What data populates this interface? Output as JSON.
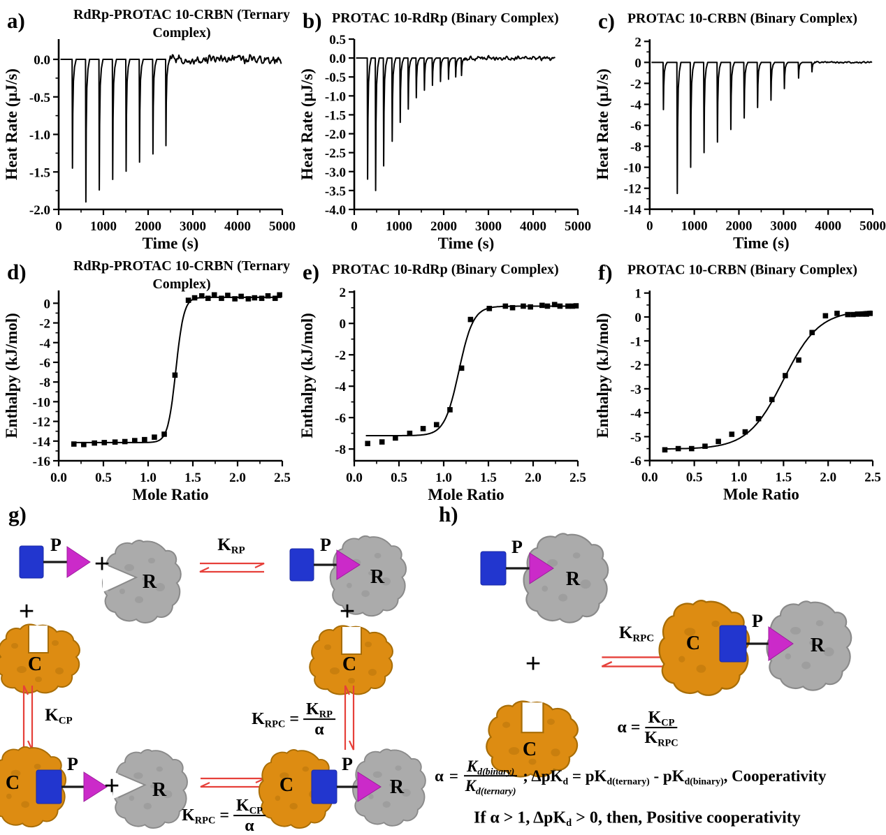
{
  "colors": {
    "blue": "#2236cf",
    "magenta": "#cb2ac9",
    "magenta_dark": "#9c1d9c",
    "gray_blob": "#ababab",
    "gray_blob_edge": "#8a8a8a",
    "gray_spot": "#8f8f8f",
    "orange_blob": "#dd8c12",
    "orange_blob_edge": "#a86d06",
    "orange_spot": "#b5720a",
    "arrow_red": "#e6403a",
    "ink": "#000000",
    "background": "#ffffff"
  },
  "chart_data": [
    {
      "id": "a",
      "type": "line",
      "panel_label": "a)",
      "title_lines": [
        "RdRp-PROTAC 10-CRBN (Ternary",
        "Complex)"
      ],
      "xlabel": "Time (s)",
      "ylabel": "Heat Rate (μJ/s)",
      "xlim": [
        0,
        5000
      ],
      "ylim": [
        -2.0,
        0.27
      ],
      "xticks": [
        "0",
        "1000",
        "2000",
        "3000",
        "4000",
        "5000"
      ],
      "xtick_vals": [
        0,
        1000,
        2000,
        3000,
        4000,
        5000
      ],
      "yticks": [
        "0.0",
        "-0.5",
        "-1.0",
        "-1.5",
        "-2.0"
      ],
      "ytick_vals": [
        0,
        -0.5,
        -1,
        -1.5,
        -2
      ],
      "injection_times": [
        310,
        610,
        910,
        1210,
        1510,
        1810,
        2110,
        2400
      ],
      "injection_depths": [
        -1.45,
        -1.9,
        -1.74,
        -1.6,
        -1.49,
        -1.37,
        -1.26,
        -1.15
      ],
      "noise_start": 2480,
      "trace_end": 4980,
      "noise_amplitude": 0.07
    },
    {
      "id": "b",
      "type": "line",
      "panel_label": "b)",
      "title_lines": [
        "PROTAC 10-RdRp (Binary Complex)"
      ],
      "xlabel": "Time (s)",
      "ylabel": "Heat Rate (μJ/s)",
      "xlim": [
        0,
        5000
      ],
      "ylim": [
        -4.0,
        0.5
      ],
      "xticks": [
        "0",
        "1000",
        "2000",
        "3000",
        "4000",
        "5000"
      ],
      "xtick_vals": [
        0,
        1000,
        2000,
        3000,
        4000,
        5000
      ],
      "yticks": [
        "0.5",
        "0.0",
        "-0.5",
        "-1.0",
        "-1.5",
        "-2.0",
        "-2.5",
        "-3.0",
        "-3.5",
        "-4.0"
      ],
      "ytick_vals": [
        0.5,
        0,
        -0.5,
        -1,
        -1.5,
        -2,
        -2.5,
        -3,
        -3.5,
        -4
      ],
      "injection_times": [
        300,
        480,
        660,
        850,
        1030,
        1210,
        1390,
        1570,
        1750,
        1930,
        2110,
        2270,
        2400
      ],
      "injection_depths": [
        -3.2,
        -3.5,
        -2.85,
        -2.2,
        -1.7,
        -1.35,
        -1.05,
        -0.85,
        -0.72,
        -0.62,
        -0.56,
        -0.5,
        -0.46
      ],
      "noise_start": 2460,
      "trace_end": 4500,
      "noise_amplitude": 0.07
    },
    {
      "id": "c",
      "type": "line",
      "panel_label": "c)",
      "title_lines": [
        "PROTAC 10-CRBN (Binary Complex)"
      ],
      "xlabel": "Time (s)",
      "ylabel": "Heat Rate (μJ/s)",
      "xlim": [
        0,
        5000
      ],
      "ylim": [
        -14,
        2.2
      ],
      "xticks": [
        "0",
        "1000",
        "2000",
        "3000",
        "4000",
        "5000"
      ],
      "xtick_vals": [
        0,
        1000,
        2000,
        3000,
        4000,
        5000
      ],
      "yticks": [
        "2",
        "0",
        "-2",
        "-4",
        "-6",
        "-8",
        "-10",
        "-12",
        "-14"
      ],
      "ytick_vals": [
        2,
        0,
        -2,
        -4,
        -6,
        -8,
        -10,
        -12,
        -14
      ],
      "injection_times": [
        310,
        620,
        920,
        1220,
        1520,
        1820,
        2120,
        2420,
        2720,
        3020,
        3340,
        3640
      ],
      "injection_depths": [
        -4.5,
        -12.5,
        -10.0,
        -8.6,
        -7.6,
        -6.4,
        -5.3,
        -4.3,
        -3.6,
        -2.5,
        -1.5,
        -0.9
      ],
      "noise_start": 3700,
      "trace_end": 4990,
      "noise_amplitude": 0.1
    },
    {
      "id": "d",
      "type": "scatter",
      "panel_label": "d)",
      "title_lines": [
        "RdRp-PROTAC 10-CRBN (Ternary",
        "Complex)"
      ],
      "xlabel": "Mole Ratio",
      "ylabel": "Enthalpy (kJ/mol)",
      "xlim": [
        0,
        2.5
      ],
      "ylim": [
        -16,
        1.3
      ],
      "xticks": [
        "0.0",
        "0.5",
        "1.0",
        "1.5",
        "2.0",
        "2.5"
      ],
      "xtick_vals": [
        0,
        0.5,
        1,
        1.5,
        2,
        2.5
      ],
      "yticks": [
        "0",
        "-2",
        "-4",
        "-6",
        "-8",
        "-10",
        "-12",
        "-14",
        "-16"
      ],
      "ytick_vals": [
        0,
        -2,
        -4,
        -6,
        -8,
        -10,
        -12,
        -14,
        -16
      ],
      "points_x": [
        0.17,
        0.28,
        0.4,
        0.51,
        0.63,
        0.74,
        0.85,
        0.96,
        1.07,
        1.18,
        1.3,
        1.45,
        1.52,
        1.6,
        1.67,
        1.74,
        1.82,
        1.89,
        1.97,
        2.04,
        2.12,
        2.19,
        2.27,
        2.34,
        2.42,
        2.47
      ],
      "points_y": [
        -14.3,
        -14.35,
        -14.2,
        -14.15,
        -14.1,
        -14.05,
        -13.95,
        -13.85,
        -13.6,
        -13.3,
        -7.3,
        0.3,
        0.55,
        0.75,
        0.5,
        0.85,
        0.5,
        0.8,
        0.45,
        0.7,
        0.45,
        0.55,
        0.5,
        0.75,
        0.5,
        0.85
      ],
      "fit": {
        "lower": -14.15,
        "upper": 0.6,
        "center": 1.31,
        "rate": 0.045,
        "x_start": 0.15,
        "x_end": 2.49
      }
    },
    {
      "id": "e",
      "type": "scatter",
      "panel_label": "e)",
      "title_lines": [
        "PROTAC 10-RdRp (Binary Complex)"
      ],
      "xlabel": "Mole Ratio",
      "ylabel": "Enthalpy (kJ/mol)",
      "xlim": [
        0,
        2.5
      ],
      "ylim": [
        -8.75,
        2.1
      ],
      "xticks": [
        "0.0",
        "0.5",
        "1.0",
        "1.5",
        "2.0",
        "2.5"
      ],
      "xtick_vals": [
        0,
        0.5,
        1,
        1.5,
        2,
        2.5
      ],
      "yticks": [
        "2",
        "0",
        "-2",
        "-4",
        "-6",
        "-8"
      ],
      "ytick_vals": [
        2,
        0,
        -2,
        -4,
        -6,
        -8
      ],
      "points_x": [
        0.15,
        0.31,
        0.46,
        0.62,
        0.77,
        0.92,
        1.07,
        1.2,
        1.3,
        1.51,
        1.69,
        1.77,
        1.89,
        1.97,
        2.1,
        2.16,
        2.24,
        2.3,
        2.39,
        2.44,
        2.48
      ],
      "points_y": [
        -7.65,
        -7.55,
        -7.3,
        -7.0,
        -6.7,
        -6.45,
        -5.5,
        -2.85,
        0.25,
        0.95,
        1.1,
        1.0,
        1.1,
        1.05,
        1.15,
        1.1,
        1.2,
        1.1,
        1.1,
        1.1,
        1.12
      ],
      "fit": {
        "lower": -7.15,
        "upper": 1.1,
        "center": 1.17,
        "rate": 0.08,
        "x_start": 0.13,
        "x_end": 2.49
      }
    },
    {
      "id": "f",
      "type": "scatter",
      "panel_label": "f)",
      "title_lines": [
        "PROTAC 10-CRBN (Binary Complex)"
      ],
      "xlabel": "Mole Ratio",
      "ylabel": "Enthalpy (kJ/mol)",
      "xlim": [
        0,
        2.5
      ],
      "ylim": [
        -6,
        1.1
      ],
      "xticks": [
        "0.0",
        "0.5",
        "1.0",
        "1.5",
        "2.0",
        "2.5"
      ],
      "xtick_vals": [
        0,
        0.5,
        1,
        1.5,
        2,
        2.5
      ],
      "yticks": [
        "1",
        "0",
        "-1",
        "-2",
        "-3",
        "-4",
        "-5",
        "-6"
      ],
      "ytick_vals": [
        1,
        0,
        -1,
        -2,
        -3,
        -4,
        -5,
        -6
      ],
      "points_x": [
        0.17,
        0.32,
        0.47,
        0.62,
        0.77,
        0.92,
        1.07,
        1.22,
        1.37,
        1.52,
        1.67,
        1.82,
        1.97,
        2.1,
        2.22,
        2.28,
        2.33,
        2.38,
        2.43,
        2.47
      ],
      "points_y": [
        -5.55,
        -5.5,
        -5.5,
        -5.4,
        -5.2,
        -4.9,
        -4.8,
        -4.25,
        -3.45,
        -2.45,
        -1.8,
        -0.65,
        0.05,
        0.15,
        0.1,
        0.1,
        0.12,
        0.12,
        0.12,
        0.15
      ],
      "fit": {
        "lower": -5.52,
        "upper": 0.28,
        "center": 1.5,
        "rate": 0.2,
        "x_start": 0.15,
        "x_end": 2.49
      }
    }
  ],
  "scheme": {
    "g_label": "g)",
    "h_label": "h)",
    "plus": "+",
    "P": "P",
    "R": "R",
    "C": "C",
    "K": "K",
    "alpha": "α",
    "equals": "=",
    "sub_rp": "RP",
    "sub_cp": "CP",
    "sub_rpc": "RPC",
    "eq1": {
      "alpha": "α",
      "equals": "=",
      "num_main": "K",
      "num_sub": "d(binary)",
      "den_main": "K",
      "den_sub": "d(ternary)",
      "semi": ";",
      "t1": "ΔpK",
      "t1_sub": "d",
      "t2": " = pK",
      "t2_sub": "d(ternary)",
      "t3": " - pK",
      "t3_sub": "d(binary)",
      "t4": ", Cooperativity"
    },
    "eq2": {
      "t1": "If α > 1, ΔpK",
      "t1_sub": "d",
      "t2": " > 0, then, Positive cooperativity"
    }
  }
}
